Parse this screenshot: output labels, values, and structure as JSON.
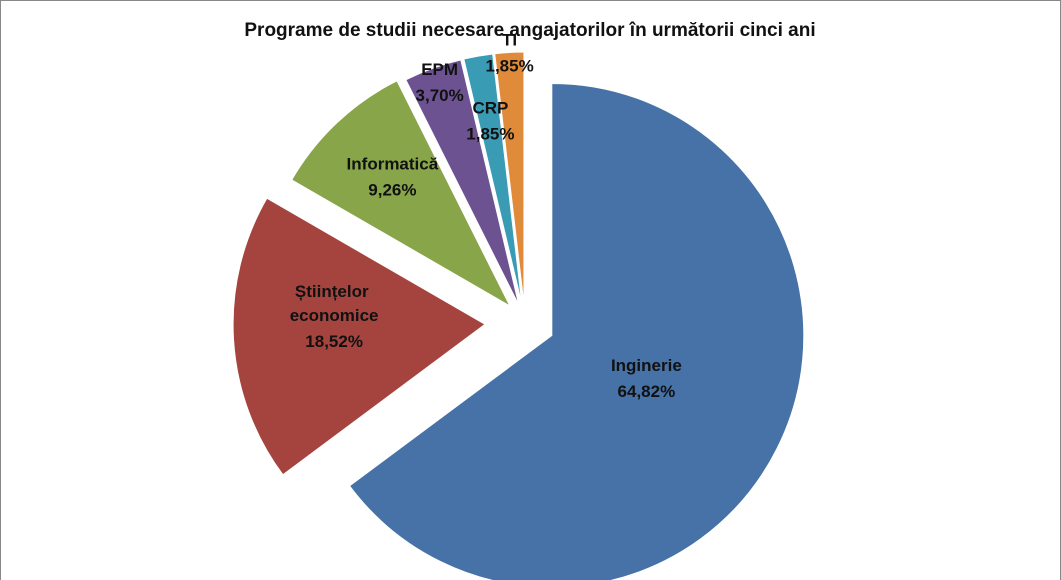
{
  "chart_data": {
    "type": "pie",
    "title": "Programe de studii necesare angajatorilor în următorii cinci ani",
    "categories": [
      "Inginerie",
      "Științelor economice",
      "Informatică",
      "EPM",
      "CRP",
      "TI"
    ],
    "values": [
      64.82,
      18.52,
      9.26,
      3.7,
      1.85,
      1.85
    ],
    "value_labels": [
      "64,82%",
      "18,52%",
      "9,26%",
      "3,70%",
      "1,85%",
      "1,85%"
    ],
    "colors": [
      "#4672a8",
      "#a5443f",
      "#88a54a",
      "#6c5290",
      "#3a9bb5",
      "#e08b3a"
    ]
  }
}
